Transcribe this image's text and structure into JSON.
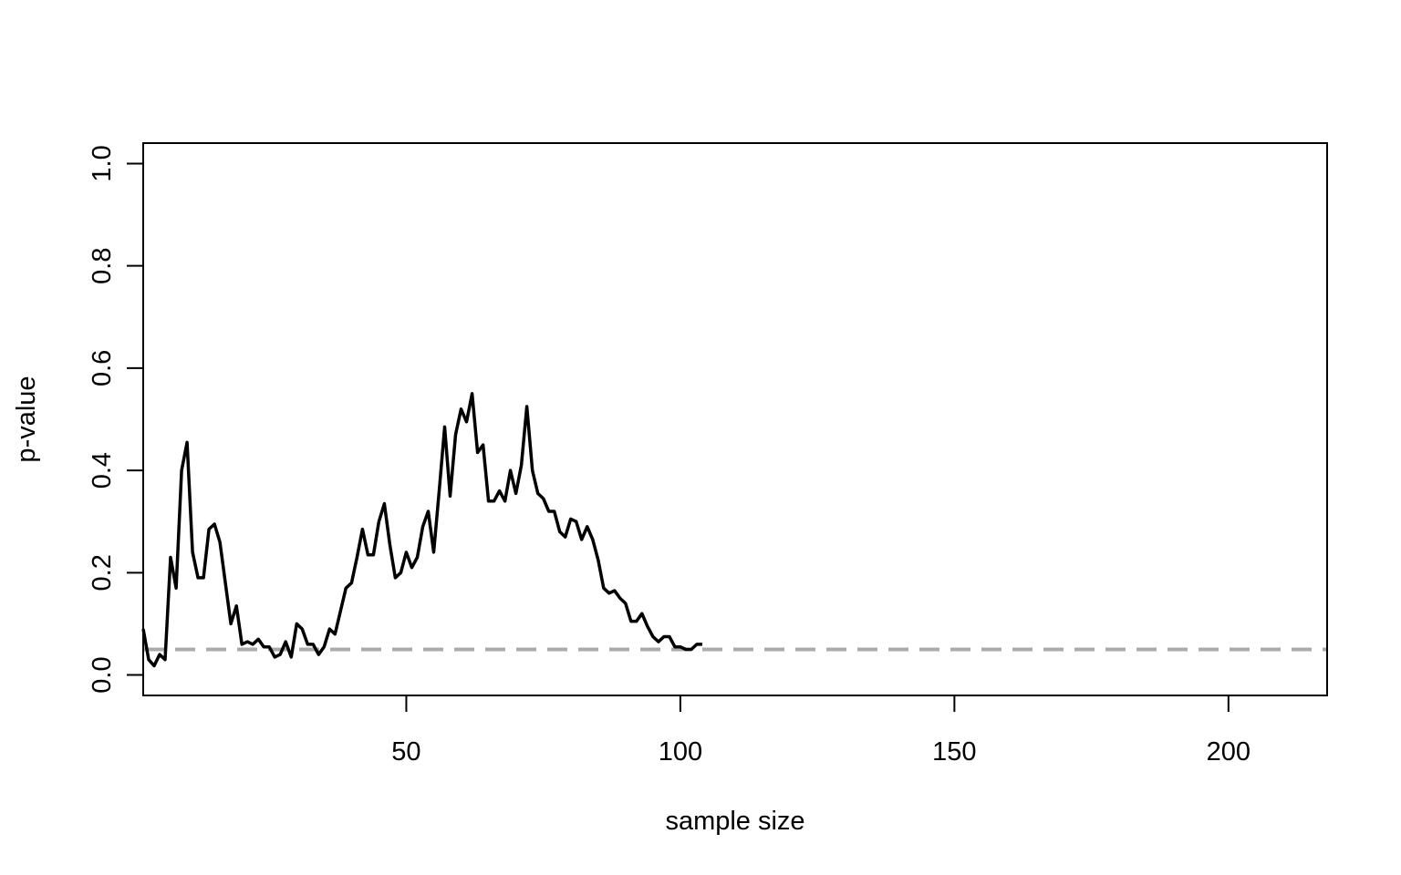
{
  "chart_data": {
    "type": "line",
    "title": "",
    "xlabel": "sample size",
    "ylabel": "p-value",
    "xlim": [
      2,
      218
    ],
    "ylim": [
      0,
      1
    ],
    "x_ticks": [
      50,
      100,
      150,
      200
    ],
    "y_ticks": [
      0.0,
      0.2,
      0.4,
      0.6,
      0.8,
      1.0
    ],
    "x_tick_labels": [
      "50",
      "100",
      "150",
      "200"
    ],
    "y_tick_labels": [
      "0.0",
      "0.2",
      "0.4",
      "0.6",
      "0.8",
      "1.0"
    ],
    "grid": false,
    "legend": "none",
    "series": [
      {
        "color": "#000000",
        "x": [
          2,
          3,
          4,
          5,
          6,
          7,
          8,
          9,
          10,
          11,
          12,
          13,
          14,
          15,
          16,
          17,
          18,
          19,
          20,
          21,
          22,
          23,
          24,
          25,
          26,
          27,
          28,
          29,
          30,
          31,
          32,
          33,
          34,
          35,
          36,
          37,
          38,
          39,
          40,
          41,
          42,
          43,
          44,
          45,
          46,
          47,
          48,
          49,
          50,
          51,
          52,
          53,
          54,
          55,
          56,
          57,
          58,
          59,
          60,
          61,
          62,
          63,
          64,
          65,
          66,
          67,
          68,
          69,
          70,
          71,
          72,
          73,
          74,
          75,
          76,
          77,
          78,
          79,
          80,
          81,
          82,
          83,
          84,
          85,
          86,
          87,
          88,
          89,
          90,
          91,
          92,
          93,
          94,
          95,
          96,
          97,
          98,
          99,
          100,
          101,
          102,
          103,
          104
        ],
        "values": [
          0.09,
          0.03,
          0.018,
          0.04,
          0.03,
          0.23,
          0.17,
          0.4,
          0.455,
          0.24,
          0.19,
          0.19,
          0.285,
          0.295,
          0.26,
          0.18,
          0.1,
          0.135,
          0.06,
          0.065,
          0.06,
          0.07,
          0.055,
          0.055,
          0.035,
          0.04,
          0.065,
          0.035,
          0.1,
          0.09,
          0.06,
          0.06,
          0.04,
          0.055,
          0.09,
          0.08,
          0.125,
          0.17,
          0.18,
          0.23,
          0.285,
          0.235,
          0.235,
          0.3,
          0.335,
          0.255,
          0.19,
          0.2,
          0.24,
          0.21,
          0.23,
          0.29,
          0.32,
          0.24,
          0.36,
          0.485,
          0.35,
          0.47,
          0.52,
          0.495,
          0.55,
          0.435,
          0.45,
          0.34,
          0.34,
          0.36,
          0.34,
          0.4,
          0.355,
          0.41,
          0.525,
          0.4,
          0.355,
          0.345,
          0.32,
          0.32,
          0.28,
          0.27,
          0.305,
          0.3,
          0.265,
          0.29,
          0.265,
          0.225,
          0.17,
          0.16,
          0.165,
          0.15,
          0.14,
          0.105,
          0.105,
          0.12,
          0.095,
          0.075,
          0.065,
          0.075,
          0.075,
          0.055,
          0.055,
          0.05,
          0.05,
          0.06,
          0.06
        ]
      }
    ],
    "reference_line": {
      "y": 0.05,
      "color": "#aaaaaa",
      "style": "dashed"
    }
  }
}
